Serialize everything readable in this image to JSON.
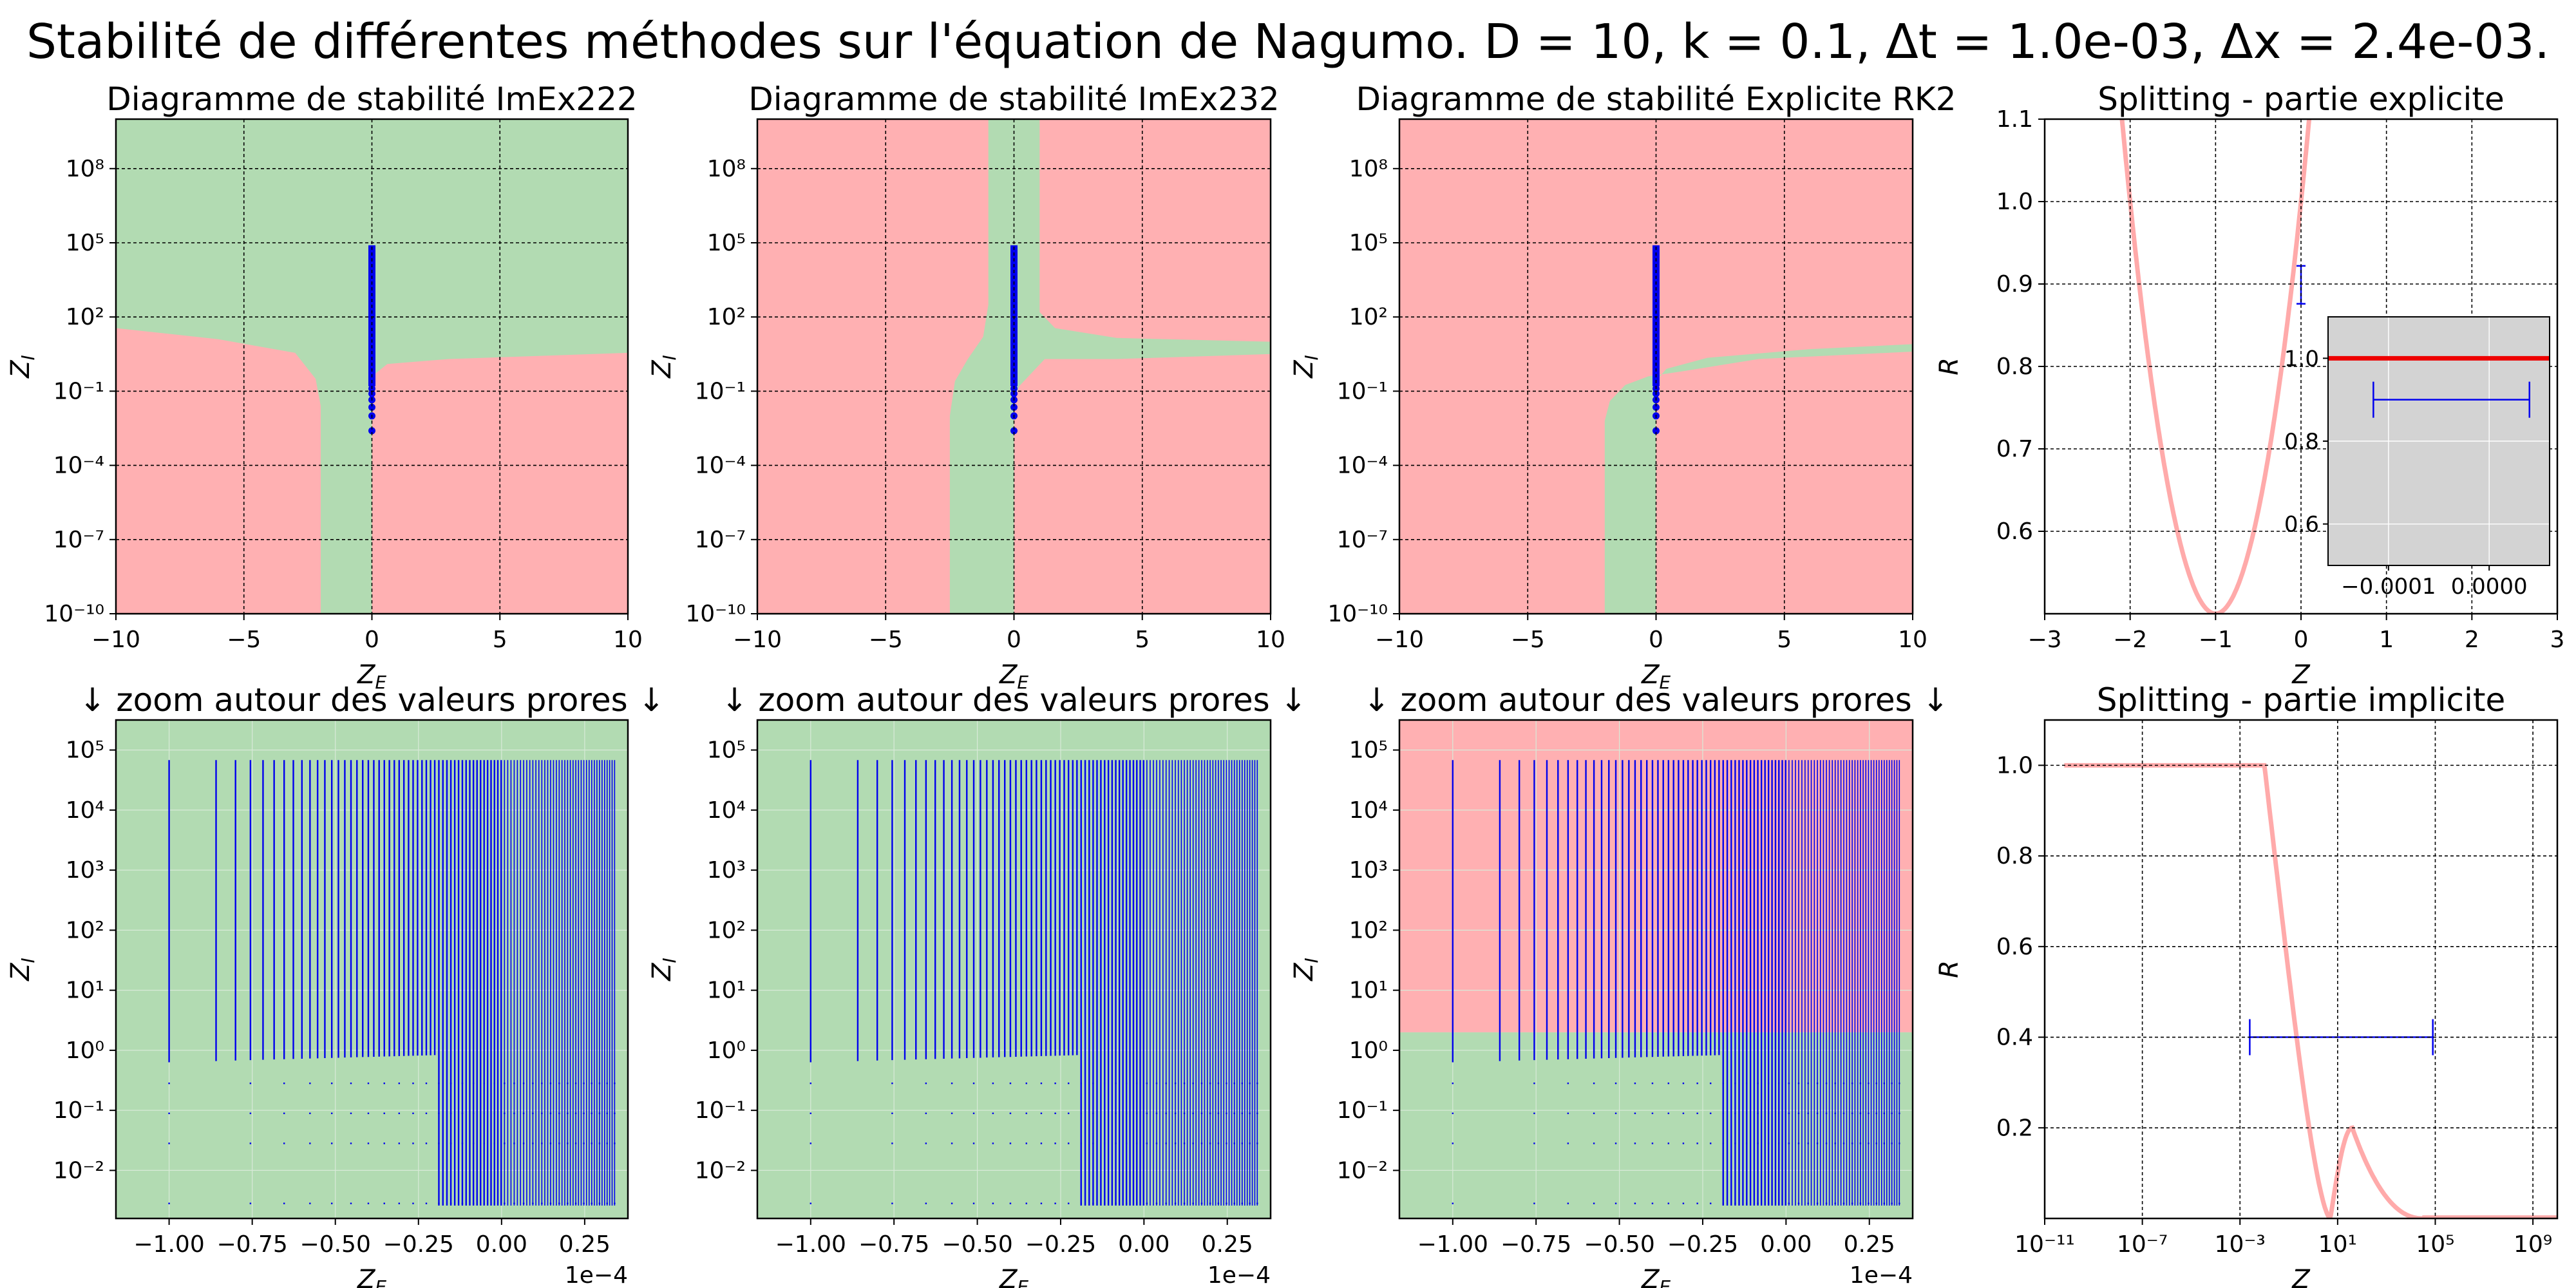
{
  "figure": {
    "suptitle": "Stabilité de différentes méthodes sur l'équation de Nagumo. D = 10, k = 0.1, Δt = 1.0e-03, Δx = 2.4e-03."
  },
  "colors": {
    "stable": "#b2dbb2",
    "unstable": "#ffb0b2",
    "eig": "#0000ee",
    "grid": "#000000",
    "R_curve": "#ffaaaa",
    "inset_bg": "#d3d3d3",
    "inset_line": "#ee0000"
  },
  "chart_data": [
    {
      "id": "imex222",
      "type": "heatmap",
      "title": "Diagramme de stabilité ImEx222",
      "xlabel": "Z_E",
      "ylabel": "Z_I",
      "xlim": [
        -10,
        10
      ],
      "ylim_log10": [
        -10,
        10
      ],
      "yscale": "log",
      "xticks": [
        "−10",
        "−5",
        "0",
        "5",
        "10"
      ],
      "yticks": [
        "10⁻¹⁰",
        "10⁻⁷",
        "10⁻⁴",
        "10⁻¹",
        "10²",
        "10⁵",
        "10⁸"
      ],
      "background_region": "stable",
      "eigenvalues": {
        "x": 0,
        "zi_log10_range": [
          -2.6,
          4.9
        ]
      }
    },
    {
      "id": "imex232",
      "type": "heatmap",
      "title": "Diagramme de stabilité ImEx232",
      "xlabel": "Z_E",
      "ylabel": "Z_I",
      "xlim": [
        -10,
        10
      ],
      "ylim_log10": [
        -10,
        10
      ],
      "yscale": "log",
      "xticks": [
        "−10",
        "−5",
        "0",
        "5",
        "10"
      ],
      "yticks": [
        "10⁻¹⁰",
        "10⁻⁷",
        "10⁻⁴",
        "10⁻¹",
        "10²",
        "10⁵",
        "10⁸"
      ],
      "background_region": "unstable",
      "eigenvalues": {
        "x": 0,
        "zi_log10_range": [
          -2.6,
          4.9
        ]
      }
    },
    {
      "id": "rk2",
      "type": "heatmap",
      "title": "Diagramme de stabilité Explicite RK2",
      "xlabel": "Z_E",
      "ylabel": "Z_I",
      "xlim": [
        -10,
        10
      ],
      "ylim_log10": [
        -10,
        10
      ],
      "yscale": "log",
      "xticks": [
        "−10",
        "−5",
        "0",
        "5",
        "10"
      ],
      "yticks": [
        "10⁻¹⁰",
        "10⁻⁷",
        "10⁻⁴",
        "10⁻¹",
        "10²",
        "10⁵",
        "10⁸"
      ],
      "background_region": "unstable",
      "eigenvalues": {
        "x": 0,
        "zi_log10_range": [
          -2.6,
          4.9
        ]
      }
    },
    {
      "id": "split_exp",
      "type": "line",
      "title": "Splitting - partie explicite",
      "xlabel": "Z",
      "ylabel": "R",
      "xlim": [
        -3,
        3
      ],
      "ylim": [
        0.5,
        1.1
      ],
      "xticks": [
        "−3",
        "−2",
        "−1",
        "0",
        "1",
        "2",
        "3"
      ],
      "yticks": [
        "0.6",
        "0.7",
        "0.8",
        "0.9",
        "1.0",
        "1.1"
      ],
      "curve": "R(z) = |1 + z + z²/2|",
      "eig_bar": {
        "x": 0,
        "y_range": [
          0.876,
          0.922
        ]
      },
      "inset": {
        "xlim": [
          -0.00016,
          6e-05
        ],
        "ylim": [
          0.5,
          1.1
        ],
        "xticks": [
          "−0.0001",
          "0.0000"
        ],
        "yticks": [
          "0.6",
          "0.8",
          "1.0"
        ],
        "line_y": 1.0,
        "eig_bar": {
          "x_range": [
            -0.000115,
            4e-05
          ],
          "y": 0.9
        }
      }
    },
    {
      "id": "zoom1",
      "type": "scatter",
      "title": "↓  zoom autour des valeurs prores  ↓",
      "xlabel": "Z_E",
      "ylabel": "Z_I",
      "offset_text": "1e−4",
      "xlim": [
        -1.16,
        0.38
      ],
      "ylim_log10": [
        -2.8,
        5.5
      ],
      "yscale": "log",
      "xticks": [
        "−1.00",
        "−0.75",
        "−0.50",
        "−0.25",
        "0.00",
        "0.25"
      ],
      "yticks": [
        "10⁻²",
        "10⁻¹",
        "10⁰",
        "10¹",
        "10²",
        "10³",
        "10⁴",
        "10⁵"
      ],
      "regions": [
        {
          "region": "stable",
          "zi_log10_range": [
            -2.8,
            5.5
          ]
        }
      ],
      "eigenvalues": {
        "zi_min": 0.0026,
        "zi_max": 68000,
        "ze_range": [
          -1.0,
          0.34
        ]
      }
    },
    {
      "id": "zoom2",
      "type": "scatter",
      "title": "↓  zoom autour des valeurs prores  ↓",
      "xlabel": "Z_E",
      "ylabel": "Z_I",
      "offset_text": "1e−4",
      "xlim": [
        -1.16,
        0.38
      ],
      "ylim_log10": [
        -2.8,
        5.5
      ],
      "yscale": "log",
      "xticks": [
        "−1.00",
        "−0.75",
        "−0.50",
        "−0.25",
        "0.00",
        "0.25"
      ],
      "yticks": [
        "10⁻²",
        "10⁻¹",
        "10⁰",
        "10¹",
        "10²",
        "10³",
        "10⁴",
        "10⁵"
      ],
      "regions": [
        {
          "region": "stable",
          "zi_log10_range": [
            -2.8,
            5.5
          ]
        }
      ],
      "eigenvalues": {
        "zi_min": 0.0026,
        "zi_max": 68000,
        "ze_range": [
          -1.0,
          0.34
        ]
      }
    },
    {
      "id": "zoom3",
      "type": "scatter",
      "title": "↓  zoom autour des valeurs prores  ↓",
      "xlabel": "Z_E",
      "ylabel": "Z_I",
      "offset_text": "1e−4",
      "xlim": [
        -1.16,
        0.38
      ],
      "ylim_log10": [
        -2.8,
        5.5
      ],
      "yscale": "log",
      "xticks": [
        "−1.00",
        "−0.75",
        "−0.50",
        "−0.25",
        "0.00",
        "0.25"
      ],
      "yticks": [
        "10⁻²",
        "10⁻¹",
        "10⁰",
        "10¹",
        "10²",
        "10³",
        "10⁴",
        "10⁵"
      ],
      "regions": [
        {
          "region": "stable",
          "zi_log10_range": [
            -2.8,
            0.3
          ]
        },
        {
          "region": "unstable",
          "zi_log10_range": [
            0.3,
            5.5
          ]
        }
      ],
      "eigenvalues": {
        "zi_min": 0.0026,
        "zi_max": 68000,
        "ze_range": [
          -1.0,
          0.34
        ]
      }
    },
    {
      "id": "split_imp",
      "type": "line",
      "title": "Splitting - partie implicite",
      "xlabel": "Z",
      "ylabel": "R",
      "xscale": "log",
      "xlim_log10": [
        -11,
        10
      ],
      "ylim": [
        0,
        1.1
      ],
      "xticks": [
        "10⁻¹¹",
        "10⁻⁷",
        "10⁻³",
        "10¹",
        "10⁵",
        "10⁹"
      ],
      "yticks": [
        "0.2",
        "0.4",
        "0.6",
        "0.8",
        "1.0"
      ],
      "eig_bar": {
        "x_log10_range": [
          -2.6,
          4.9
        ],
        "y": 0.4
      }
    }
  ]
}
